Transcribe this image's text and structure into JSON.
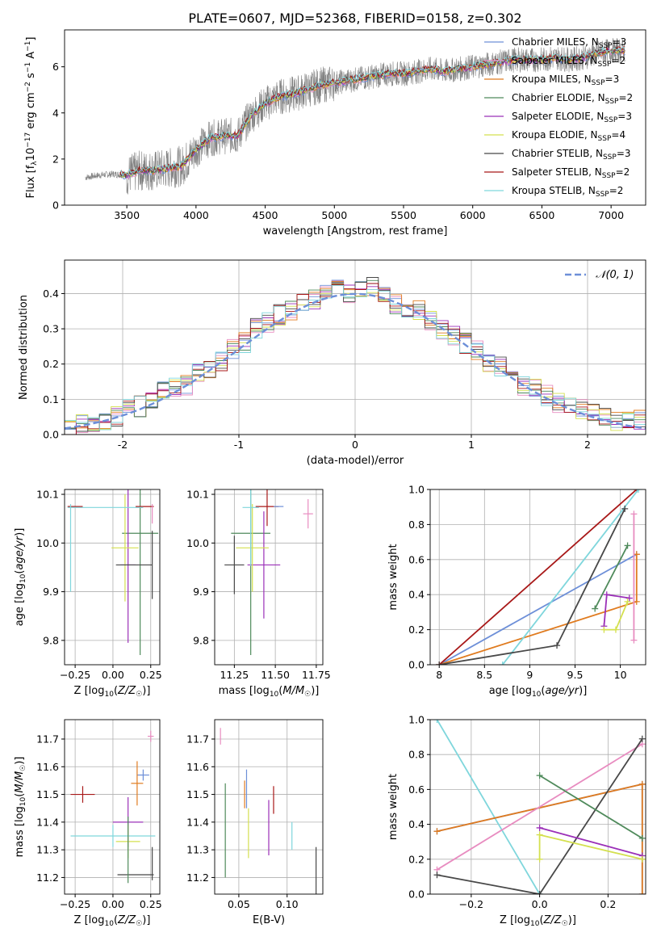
{
  "figure": {
    "title": "PLATE=0607, MJD=52368, FIBERID=0158, z=0.302"
  },
  "legend_series": [
    {
      "name": "Chabrier MILES",
      "nssp": "3",
      "color": "#6d8fd8"
    },
    {
      "name": "Salpeter MILES",
      "nssp": "2",
      "color": "#e88cc0"
    },
    {
      "name": "Kroupa MILES",
      "nssp": "3",
      "color": "#e07b1f"
    },
    {
      "name": "Chabrier ELODIE",
      "nssp": "2",
      "color": "#4f8a5b"
    },
    {
      "name": "Salpeter ELODIE",
      "nssp": "3",
      "color": "#9b30b8"
    },
    {
      "name": "Kroupa ELODIE",
      "nssp": "4",
      "color": "#d4e04f"
    },
    {
      "name": "Chabrier STELIB",
      "nssp": "3",
      "color": "#484848"
    },
    {
      "name": "Salpeter STELIB",
      "nssp": "2",
      "color": "#a81818"
    },
    {
      "name": "Kroupa STELIB",
      "nssp": "2",
      "color": "#7fd6dc"
    }
  ],
  "legend_suffix_sub": "SSP",
  "legend_prefix": "N",
  "chart_data": [
    {
      "id": "spectrum",
      "type": "line",
      "xlabel": "wavelength [Angstrom, rest frame]",
      "ylabel": "Flux [f",
      "ylabel_text": "Flux [fλ10⁻¹⁷ erg cm⁻² s⁻¹ A⁻¹]",
      "xlim": [
        3050,
        7250
      ],
      "ylim": [
        0,
        7.6
      ],
      "xticks": [
        3500,
        4000,
        4500,
        5000,
        5500,
        6000,
        6500,
        7000
      ],
      "yticks": [
        0,
        2,
        4,
        6
      ],
      "grid": false,
      "legend": "top-right",
      "data_x": [
        3200,
        3300,
        3400,
        3500,
        3600,
        3700,
        3800,
        3900,
        4000,
        4100,
        4200,
        4300,
        4400,
        4500,
        4600,
        4700,
        4800,
        4900,
        5000,
        5100,
        5200,
        5300,
        5400,
        5500,
        5600,
        5700,
        5800,
        5900,
        6000,
        6100,
        6200,
        6300,
        6400,
        6500,
        6600,
        6700,
        6800,
        6900,
        7000,
        7100
      ],
      "data_y": [
        1.2,
        1.3,
        1.35,
        1.3,
        1.5,
        1.5,
        1.6,
        1.7,
        2.4,
        2.9,
        3.0,
        3.0,
        3.9,
        4.4,
        4.7,
        4.8,
        5.0,
        5.2,
        5.3,
        5.4,
        5.5,
        5.6,
        5.7,
        5.7,
        5.8,
        5.9,
        5.8,
        5.9,
        6.0,
        6.1,
        6.2,
        6.3,
        6.3,
        6.3,
        6.4,
        6.3,
        6.4,
        6.6,
        6.7,
        6.7
      ]
    },
    {
      "id": "residual-hist",
      "type": "bar",
      "xlabel": "(data-model)/error",
      "ylabel": "Normed distribution",
      "xlim": [
        -2.5,
        2.5
      ],
      "ylim": [
        0,
        0.495
      ],
      "xticks": [
        -2,
        -1,
        0,
        1,
        2
      ],
      "yticks": [
        0.0,
        0.1,
        0.2,
        0.3,
        0.4
      ],
      "grid": true,
      "legend": "top-right",
      "legend_label": "𝒩(0, 1)",
      "bin_centers": [
        -2.45,
        -2.35,
        -2.25,
        -2.15,
        -2.05,
        -1.95,
        -1.85,
        -1.75,
        -1.65,
        -1.55,
        -1.45,
        -1.35,
        -1.25,
        -1.15,
        -1.05,
        -0.95,
        -0.85,
        -0.75,
        -0.65,
        -0.55,
        -0.45,
        -0.35,
        -0.25,
        -0.15,
        -0.05,
        0.05,
        0.15,
        0.25,
        0.35,
        0.45,
        0.55,
        0.65,
        0.75,
        0.85,
        0.95,
        1.05,
        1.15,
        1.25,
        1.35,
        1.45,
        1.55,
        1.65,
        1.75,
        1.85,
        1.95,
        2.05,
        2.15,
        2.25,
        2.35,
        2.45
      ],
      "values": [
        0.02,
        0.03,
        0.035,
        0.04,
        0.05,
        0.07,
        0.08,
        0.1,
        0.12,
        0.13,
        0.14,
        0.18,
        0.19,
        0.21,
        0.24,
        0.26,
        0.3,
        0.32,
        0.34,
        0.35,
        0.37,
        0.38,
        0.4,
        0.42,
        0.4,
        0.41,
        0.42,
        0.39,
        0.37,
        0.36,
        0.35,
        0.32,
        0.3,
        0.28,
        0.26,
        0.24,
        0.2,
        0.19,
        0.16,
        0.14,
        0.13,
        0.11,
        0.09,
        0.08,
        0.07,
        0.06,
        0.05,
        0.04,
        0.04,
        0.04
      ]
    },
    {
      "id": "z-age",
      "type": "scatter",
      "xlabel": "Z [log",
      "xlabel_text": "Z [log10(Z/Z☉)]",
      "ylabel_text": "age  [log10(age/yr)]",
      "xlim": [
        -0.32,
        0.31
      ],
      "ylim": [
        9.75,
        10.11
      ],
      "xticks": [
        -0.25,
        0.0,
        0.25
      ],
      "xticklabels": [
        "−0.25",
        "0.00",
        "0.25"
      ],
      "yticks": [
        9.8,
        9.9,
        10.0,
        10.1
      ],
      "grid": true,
      "points": [
        {
          "x": 0.18,
          "y": 10.02,
          "xerr": 0.12,
          "yerr": 0.25,
          "color": "#4f8a5b"
        },
        {
          "x": 0.1,
          "y": 9.955,
          "xerr": 0.05,
          "yerr": 0.16,
          "color": "#9b30b8"
        },
        {
          "x": 0.08,
          "y": 9.99,
          "xerr": 0.09,
          "yerr": 0.11,
          "color": "#d4e04f"
        },
        {
          "x": 0.14,
          "y": 9.955,
          "xerr": 0.12,
          "yerr": 0.0,
          "color": "#484848"
        },
        {
          "x": 0.26,
          "y": 9.955,
          "xerr": 0.0,
          "yerr": 0.07,
          "color": "#484848"
        },
        {
          "x": -0.25,
          "y": 10.075,
          "xerr": 0.05,
          "yerr": 0.0,
          "color": "#a81818"
        },
        {
          "x": 0.21,
          "y": 10.075,
          "xerr": 0.06,
          "yerr": 0.0,
          "color": "#a81818"
        },
        {
          "x": -0.05,
          "y": 10.073,
          "xerr": 0.25,
          "yerr": 0.0,
          "color": "#7fd6dc"
        },
        {
          "x": -0.28,
          "y": 9.99,
          "xerr": 0.0,
          "yerr": 0.09,
          "color": "#7fd6dc"
        },
        {
          "x": 0.26,
          "y": 10.06,
          "xerr": 0.0,
          "yerr": 0.02,
          "color": "#e88cc0"
        }
      ]
    },
    {
      "id": "mass-age",
      "type": "scatter",
      "xlabel": "mass [log",
      "xlabel_text": "mass [log10(M/M☉)]",
      "xlim": [
        11.13,
        11.79
      ],
      "ylim": [
        9.75,
        10.11
      ],
      "xticks": [
        11.25,
        11.5,
        11.75
      ],
      "xticklabels": [
        "11.25",
        "11.50",
        "11.75"
      ],
      "yticks": [
        9.8,
        9.9,
        10.0,
        10.1
      ],
      "grid": true,
      "points": [
        {
          "x": 11.35,
          "y": 10.02,
          "xerr": 0.12,
          "yerr": 0.25,
          "color": "#4f8a5b"
        },
        {
          "x": 11.43,
          "y": 9.955,
          "xerr": 0.1,
          "yerr": 0.11,
          "color": "#9b30b8"
        },
        {
          "x": 11.36,
          "y": 9.99,
          "xerr": 0.1,
          "yerr": 0.09,
          "color": "#d4e04f"
        },
        {
          "x": 11.25,
          "y": 9.955,
          "xerr": 0.06,
          "yerr": 0.06,
          "color": "#484848"
        },
        {
          "x": 11.45,
          "y": 10.075,
          "xerr": 0.07,
          "yerr": 0.04,
          "color": "#a81818"
        },
        {
          "x": 11.35,
          "y": 10.073,
          "xerr": 0.05,
          "yerr": 0.12,
          "color": "#7fd6dc"
        },
        {
          "x": 11.7,
          "y": 10.06,
          "xerr": 0.03,
          "yerr": 0.03,
          "color": "#e88cc0"
        },
        {
          "x": 11.52,
          "y": 10.075,
          "xerr": 0.03,
          "yerr": 0.0,
          "color": "#6d8fd8"
        }
      ]
    },
    {
      "id": "age-massweight",
      "type": "line",
      "xlabel_text": "age  [log10(age/yr)]",
      "ylabel": "mass weight",
      "xlim": [
        7.9,
        10.28
      ],
      "ylim": [
        0,
        1.0
      ],
      "xticks": [
        8.0,
        8.5,
        9.0,
        9.5,
        10.0
      ],
      "yticks": [
        0.0,
        0.2,
        0.4,
        0.6,
        0.8,
        1.0
      ],
      "grid": true,
      "series": [
        {
          "color": "#6d8fd8",
          "x": [
            8.0,
            10.18
          ],
          "y": [
            0.0,
            0.63
          ]
        },
        {
          "color": "#e07b1f",
          "x": [
            8.0,
            10.18,
            10.18
          ],
          "y": [
            0.0,
            0.36,
            0.63
          ]
        },
        {
          "color": "#a81818",
          "x": [
            8.0,
            10.18
          ],
          "y": [
            0.0,
            1.0
          ]
        },
        {
          "color": "#7fd6dc",
          "x": [
            8.7,
            10.2
          ],
          "y": [
            0.0,
            1.0
          ]
        },
        {
          "color": "#484848",
          "x": [
            8.0,
            9.3,
            10.05
          ],
          "y": [
            0.0,
            0.11,
            0.89
          ]
        },
        {
          "color": "#4f8a5b",
          "x": [
            9.72,
            10.08
          ],
          "y": [
            0.32,
            0.68
          ]
        },
        {
          "color": "#9b30b8",
          "x": [
            9.82,
            9.85,
            10.1
          ],
          "y": [
            0.22,
            0.4,
            0.38
          ]
        },
        {
          "color": "#d4e04f",
          "x": [
            9.82,
            9.95,
            10.08
          ],
          "y": [
            0.2,
            0.2,
            0.36
          ]
        },
        {
          "color": "#e88cc0",
          "x": [
            10.15,
            10.15
          ],
          "y": [
            0.14,
            0.86
          ]
        }
      ]
    },
    {
      "id": "z-mass",
      "type": "scatter",
      "xlabel_text": "Z [log10(Z/Z☉)]",
      "ylabel_text": "mass [log10(M/M☉)]",
      "xlim": [
        -0.32,
        0.31
      ],
      "ylim": [
        11.14,
        11.77
      ],
      "xticks": [
        -0.25,
        0.0,
        0.25
      ],
      "xticklabels": [
        "−0.25",
        "0.00",
        "0.25"
      ],
      "yticks": [
        11.2,
        11.3,
        11.4,
        11.5,
        11.6,
        11.7
      ],
      "grid": true,
      "points": [
        {
          "x": 0.2,
          "y": 11.57,
          "xerr": 0.04,
          "yerr": 0.02,
          "color": "#6d8fd8"
        },
        {
          "x": 0.16,
          "y": 11.54,
          "xerr": 0.04,
          "yerr": 0.08,
          "color": "#e07b1f"
        },
        {
          "x": 0.25,
          "y": 11.71,
          "xerr": 0.02,
          "yerr": 0.02,
          "color": "#e88cc0"
        },
        {
          "x": 0.1,
          "y": 11.4,
          "xerr": 0.1,
          "yerr": 0.09,
          "color": "#9b30b8"
        },
        {
          "x": 0.1,
          "y": 11.33,
          "xerr": 0.08,
          "yerr": 0.06,
          "color": "#d4e04f"
        },
        {
          "x": -0.2,
          "y": 11.5,
          "xerr": 0.08,
          "yerr": 0.03,
          "color": "#a81818"
        },
        {
          "x": 0.0,
          "y": 11.35,
          "xerr": 0.28,
          "yerr": 0.04,
          "color": "#7fd6dc"
        },
        {
          "x": 0.15,
          "y": 11.21,
          "xerr": 0.12,
          "yerr": 0.0,
          "color": "#484848"
        },
        {
          "x": 0.26,
          "y": 11.25,
          "xerr": 0.0,
          "yerr": 0.06,
          "color": "#484848"
        },
        {
          "x": 0.1,
          "y": 11.3,
          "xerr": 0.0,
          "yerr": 0.12,
          "color": "#4f8a5b"
        }
      ]
    },
    {
      "id": "ebv-mass",
      "type": "scatter",
      "xlabel": "E(B-V)",
      "xlim": [
        0.025,
        0.137
      ],
      "ylim": [
        11.14,
        11.77
      ],
      "xticks": [
        0.05,
        0.1
      ],
      "xticklabels": [
        "0.05",
        "0.10"
      ],
      "yticks": [
        11.2,
        11.3,
        11.4,
        11.5,
        11.6,
        11.7
      ],
      "grid": true,
      "points": [
        {
          "x": 0.031,
          "y": 11.71,
          "xerr": 0.0,
          "yerr": 0.03,
          "color": "#e88cc0"
        },
        {
          "x": 0.058,
          "y": 11.52,
          "xerr": 0.0,
          "yerr": 0.07,
          "color": "#6d8fd8"
        },
        {
          "x": 0.056,
          "y": 11.5,
          "xerr": 0.0,
          "yerr": 0.05,
          "color": "#e07b1f"
        },
        {
          "x": 0.036,
          "y": 11.37,
          "xerr": 0.0,
          "yerr": 0.17,
          "color": "#4f8a5b"
        },
        {
          "x": 0.06,
          "y": 11.36,
          "xerr": 0.0,
          "yerr": 0.09,
          "color": "#d4e04f"
        },
        {
          "x": 0.081,
          "y": 11.38,
          "xerr": 0.0,
          "yerr": 0.1,
          "color": "#9b30b8"
        },
        {
          "x": 0.086,
          "y": 11.48,
          "xerr": 0.0,
          "yerr": 0.05,
          "color": "#a81818"
        },
        {
          "x": 0.105,
          "y": 11.35,
          "xerr": 0.0,
          "yerr": 0.05,
          "color": "#7fd6dc"
        },
        {
          "x": 0.13,
          "y": 11.22,
          "xerr": 0.0,
          "yerr": 0.09,
          "color": "#484848"
        }
      ]
    },
    {
      "id": "z-massweight",
      "type": "line",
      "xlabel_text": "Z [log10(Z/Z☉)]",
      "ylabel": "mass weight",
      "xlim": [
        -0.32,
        0.31
      ],
      "ylim": [
        0,
        1.0
      ],
      "xticks": [
        -0.2,
        0.0,
        0.2
      ],
      "xticklabels": [
        "−0.2",
        "0.0",
        "0.2"
      ],
      "yticks": [
        0.0,
        0.2,
        0.4,
        0.6,
        0.8,
        1.0
      ],
      "grid": true,
      "series": [
        {
          "color": "#7fd6dc",
          "x": [
            -0.3,
            0.0
          ],
          "y": [
            1.0,
            0.0
          ]
        },
        {
          "color": "#6d8fd8",
          "x": [
            -0.3,
            0.3,
            0.3
          ],
          "y": [
            0.36,
            0.63,
            0.0
          ]
        },
        {
          "color": "#e07b1f",
          "x": [
            -0.3,
            0.3,
            0.3
          ],
          "y": [
            0.36,
            0.63,
            0.0
          ]
        },
        {
          "color": "#e88cc0",
          "x": [
            -0.3,
            0.3
          ],
          "y": [
            0.14,
            0.86
          ]
        },
        {
          "color": "#484848",
          "x": [
            -0.3,
            0.0,
            0.3
          ],
          "y": [
            0.11,
            0.0,
            0.89
          ]
        },
        {
          "color": "#4f8a5b",
          "x": [
            0.0,
            0.3
          ],
          "y": [
            0.68,
            0.32
          ]
        },
        {
          "color": "#9b30b8",
          "x": [
            0.0,
            0.3
          ],
          "y": [
            0.38,
            0.22
          ]
        },
        {
          "color": "#d4e04f",
          "x": [
            0.0,
            0.0,
            0.3
          ],
          "y": [
            0.2,
            0.34,
            0.2
          ]
        }
      ]
    }
  ]
}
